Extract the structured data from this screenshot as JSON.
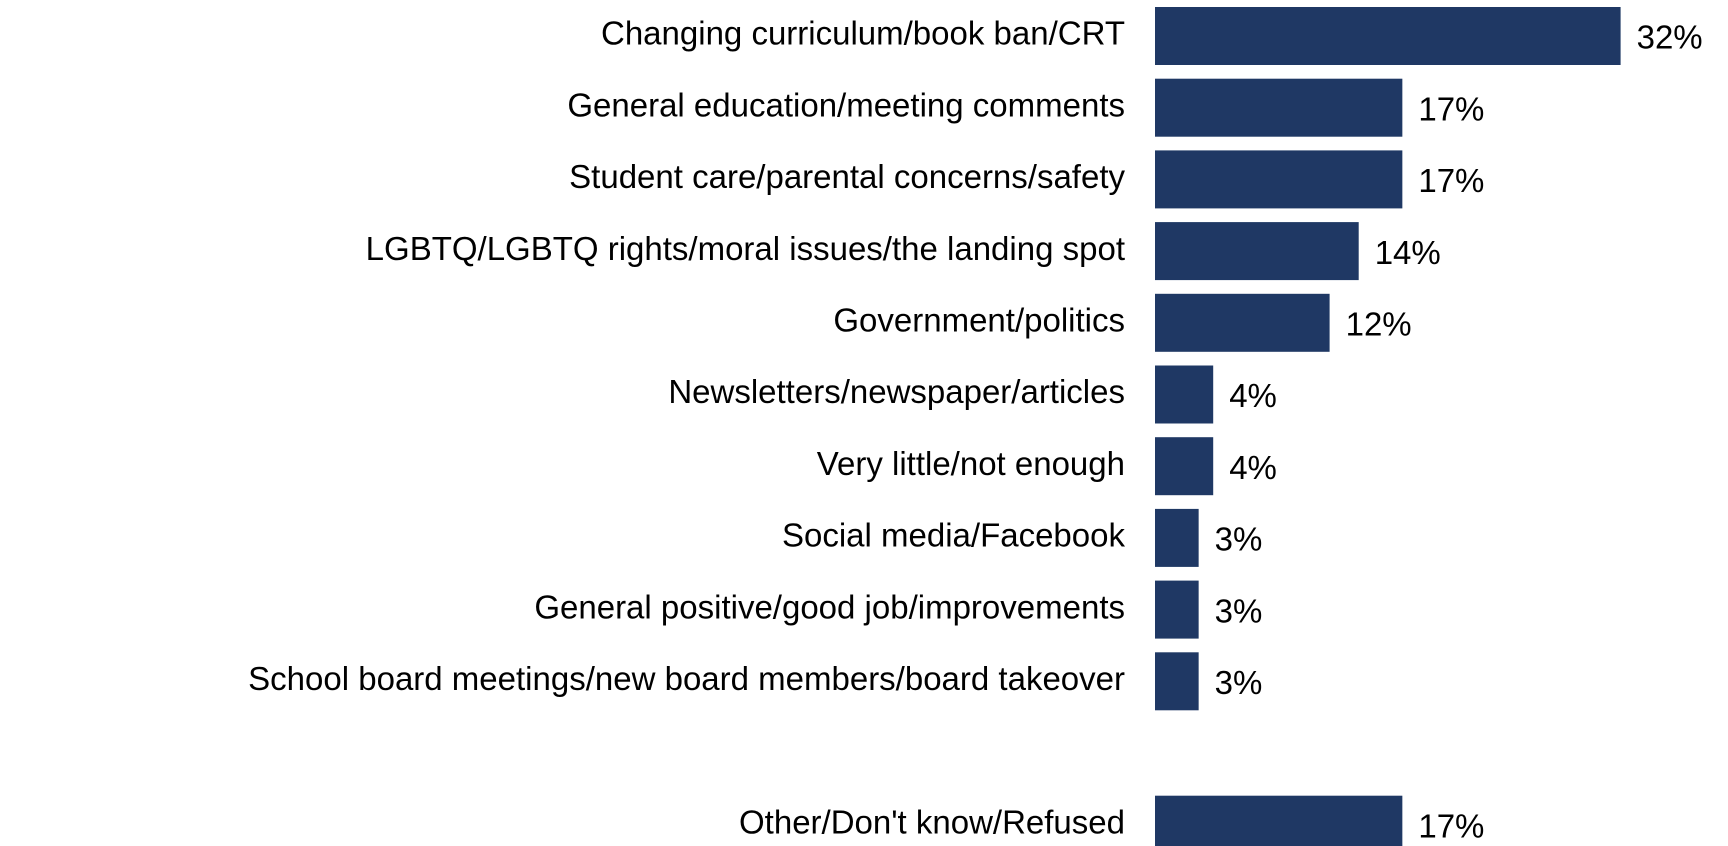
{
  "chart_data": {
    "type": "barh",
    "categories": [
      "Changing curriculum/book ban/CRT",
      "General education/meeting comments",
      "Student care/parental concerns/safety",
      "LGBTQ/LGBTQ rights/moral issues/the landing spot",
      "Government/politics",
      "Newsletters/newspaper/articles",
      "Very little/not enough",
      "Social media/Facebook",
      "General positive/good job/improvements",
      "School board meetings/new board members/board takeover",
      null,
      "Other/Don't know/Refused"
    ],
    "values": [
      32,
      17,
      17,
      14,
      12,
      4,
      4,
      3,
      3,
      3,
      null,
      17
    ],
    "value_labels": [
      "32%",
      "17%",
      "17%",
      "14%",
      "12%",
      "4%",
      "4%",
      "3%",
      "3%",
      "3%",
      null,
      "17%"
    ],
    "color": "#1f3864"
  }
}
